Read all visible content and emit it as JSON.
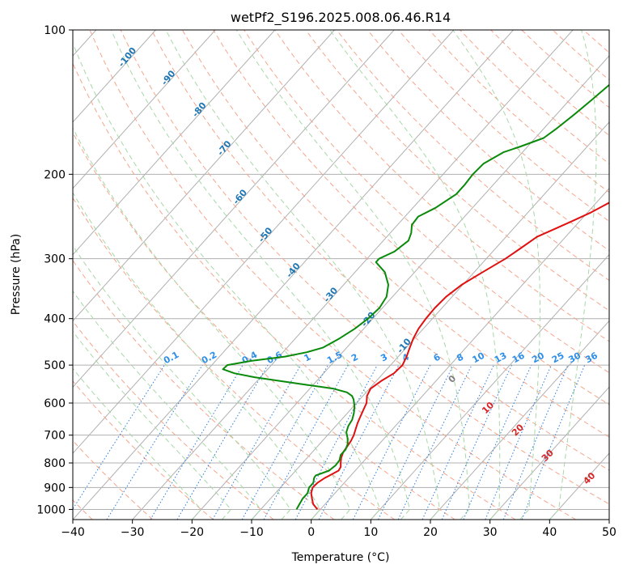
{
  "chart_data": {
    "type": "line",
    "subtype": "skew-T log-P diagram",
    "title": "wetPf2_S196.2025.008.06.46.R14",
    "xlabel": "Temperature (°C)",
    "ylabel": "Pressure (hPa)",
    "xlim": [
      -40,
      50
    ],
    "ylim": [
      1050,
      100
    ],
    "y_scale": "log",
    "x_ticks": [
      -40,
      -30,
      -20,
      -10,
      0,
      10,
      20,
      30,
      40,
      50
    ],
    "y_ticks": [
      100,
      200,
      300,
      400,
      500,
      600,
      700,
      800,
      900,
      1000
    ],
    "grid": true,
    "legend": "none",
    "background_lines": {
      "isotherms": "solid grey, skewed",
      "dry_adiabats": "dashed salmon",
      "moist_adiabats": "dashed green",
      "mixing_ratio": "dotted blue, 1050-500 hPa"
    },
    "series": [
      {
        "color": "#e01010",
        "points": [
          [
            1000,
            -0.5
          ],
          [
            975,
            -2.0
          ],
          [
            950,
            -3.0
          ],
          [
            925,
            -4.0
          ],
          [
            900,
            -4.6
          ],
          [
            880,
            -4.5
          ],
          [
            860,
            -4.0
          ],
          [
            850,
            -3.6
          ],
          [
            830,
            -2.8
          ],
          [
            815,
            -3.0
          ],
          [
            800,
            -3.6
          ],
          [
            780,
            -4.3
          ],
          [
            760,
            -4.8
          ],
          [
            740,
            -5.0
          ],
          [
            720,
            -5.2
          ],
          [
            700,
            -5.6
          ],
          [
            680,
            -6.2
          ],
          [
            660,
            -6.8
          ],
          [
            640,
            -7.3
          ],
          [
            620,
            -7.8
          ],
          [
            600,
            -8.3
          ],
          [
            580,
            -9.3
          ],
          [
            560,
            -9.8
          ],
          [
            540,
            -9.2
          ],
          [
            520,
            -8.2
          ],
          [
            500,
            -8.0
          ],
          [
            480,
            -8.6
          ],
          [
            460,
            -9.4
          ],
          [
            440,
            -10.2
          ],
          [
            420,
            -10.8
          ],
          [
            400,
            -11.1
          ],
          [
            380,
            -11.2
          ],
          [
            360,
            -11.0
          ],
          [
            340,
            -10.2
          ],
          [
            320,
            -8.6
          ],
          [
            300,
            -6.8
          ],
          [
            285,
            -5.8
          ],
          [
            270,
            -4.8
          ],
          [
            260,
            -3.0
          ],
          [
            250,
            -1.2
          ],
          [
            240,
            0.6
          ],
          [
            225,
            2.8
          ],
          [
            210,
            5.4
          ],
          [
            200,
            7.2
          ],
          [
            185,
            9.2
          ],
          [
            170,
            11.8
          ],
          [
            160,
            13.5
          ],
          [
            150,
            16.0
          ],
          [
            140,
            18.5
          ],
          [
            130,
            22.5
          ],
          [
            120,
            25.5
          ],
          [
            110,
            28.0
          ],
          [
            105,
            28.5
          ],
          [
            100,
            30.5
          ]
        ]
      },
      {
        "color": "#0a8a0a",
        "points": [
          [
            1000,
            -4.0
          ],
          [
            975,
            -4.3
          ],
          [
            950,
            -4.6
          ],
          [
            925,
            -4.6
          ],
          [
            900,
            -5.2
          ],
          [
            880,
            -5.2
          ],
          [
            860,
            -5.8
          ],
          [
            850,
            -5.9
          ],
          [
            830,
            -4.4
          ],
          [
            810,
            -4.1
          ],
          [
            790,
            -4.2
          ],
          [
            770,
            -4.8
          ],
          [
            750,
            -4.8
          ],
          [
            730,
            -5.3
          ],
          [
            710,
            -6.2
          ],
          [
            690,
            -7.3
          ],
          [
            670,
            -7.9
          ],
          [
            650,
            -8.2
          ],
          [
            630,
            -8.9
          ],
          [
            610,
            -9.8
          ],
          [
            590,
            -11.0
          ],
          [
            580,
            -11.8
          ],
          [
            570,
            -13.2
          ],
          [
            560,
            -16.0
          ],
          [
            550,
            -21.0
          ],
          [
            540,
            -26.0
          ],
          [
            530,
            -31.0
          ],
          [
            520,
            -35.0
          ],
          [
            510,
            -37.5
          ],
          [
            500,
            -37.4
          ],
          [
            490,
            -34.0
          ],
          [
            480,
            -29.0
          ],
          [
            470,
            -26.0
          ],
          [
            460,
            -24.0
          ],
          [
            440,
            -22.6
          ],
          [
            420,
            -21.5
          ],
          [
            400,
            -20.8
          ],
          [
            380,
            -20.5
          ],
          [
            360,
            -21.0
          ],
          [
            340,
            -22.5
          ],
          [
            320,
            -25.0
          ],
          [
            305,
            -28.0
          ],
          [
            300,
            -28.0
          ],
          [
            290,
            -26.5
          ],
          [
            275,
            -25.8
          ],
          [
            265,
            -26.5
          ],
          [
            255,
            -27.6
          ],
          [
            245,
            -27.8
          ],
          [
            235,
            -26.2
          ],
          [
            220,
            -24.8
          ],
          [
            210,
            -24.8
          ],
          [
            200,
            -25.0
          ],
          [
            190,
            -24.8
          ],
          [
            180,
            -23.2
          ],
          [
            175,
            -21.2
          ],
          [
            168,
            -18.6
          ],
          [
            160,
            -17.8
          ],
          [
            150,
            -17.0
          ],
          [
            140,
            -16.3
          ],
          [
            130,
            -15.6
          ],
          [
            120,
            -15.1
          ],
          [
            110,
            -14.8
          ],
          [
            105,
            -14.8
          ],
          [
            100,
            -14.2
          ]
        ]
      }
    ],
    "mixing_ratio_labels": [
      "0.1",
      "0.2",
      "0.4",
      "0.6",
      "1",
      "1.5",
      "2",
      "3",
      "4",
      "6",
      "8",
      "10",
      "13",
      "16",
      "20",
      "25",
      "30",
      "36"
    ],
    "moist_adiabat_labels": [
      "-100",
      "-90",
      "-80",
      "-70",
      "-60",
      "-50",
      "-40",
      "-30",
      "-20",
      "-10"
    ],
    "dry_adiabat_labels": [
      "0",
      "10",
      "20",
      "30",
      "40"
    ],
    "colors": {
      "temperature": "#e01010",
      "dewpoint": "#0a8a0a",
      "isotherm": "#b0b0b0",
      "dry_adiabat": "#f5a58c",
      "moist_adiabat": "#a8d8a8",
      "mixing_ratio": "#2a7de0",
      "moist_label": "#1f77b4",
      "mixing_label": "#2f8fe8",
      "dry_label": "#d62728",
      "zero_label": "#7f7f7f"
    }
  }
}
